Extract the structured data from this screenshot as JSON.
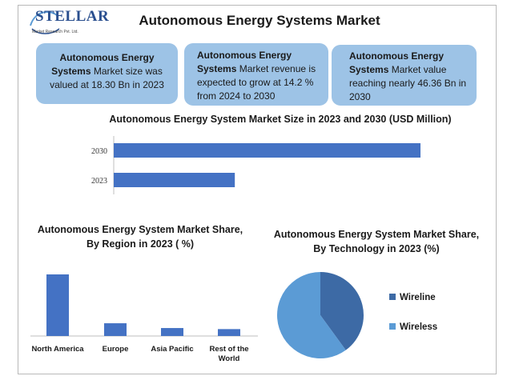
{
  "header": {
    "logo_text": "STELLAR",
    "logo_subtext": "Market Research Pvt. Ltd.",
    "title": "Autonomous Energy Systems Market"
  },
  "callouts": [
    {
      "bold": "Autonomous Energy Systems",
      "text": " Market size was valued at 18.30 Bn in 2023"
    },
    {
      "bold": "Autonomous Energy Systems",
      "text": " Market revenue is expected to grow at 14.2 % from 2024 to 2030"
    },
    {
      "bold": "Autonomous Energy Systems",
      "text": " Market value reaching nearly 46.36 Bn in 2030"
    }
  ],
  "colors": {
    "bar": "#4472c4",
    "callout": "#9dc3e6",
    "wireline": "#3d6aa5",
    "wireless": "#5b9bd5"
  },
  "chart_data": [
    {
      "type": "bar",
      "orientation": "horizontal",
      "title": "Autonomous Energy System Market Size in 2023 and 2030 (USD Million)",
      "categories": [
        "2030",
        "2023"
      ],
      "values": [
        46.36,
        18.3
      ]
    },
    {
      "type": "bar",
      "title": "Autonomous Energy System Market Share, By Region in 2023 ( %)",
      "categories": [
        "North America",
        "Europe",
        "Asia Pacific",
        "Rest of the World"
      ],
      "values": [
        58,
        12,
        7.5,
        6.5
      ]
    },
    {
      "type": "pie",
      "title": "Autonomous Energy System Market Share, By Technology in 2023 (%)",
      "labels": [
        "Wireline",
        "Wireless"
      ],
      "values": [
        40,
        60
      ],
      "legend": "right"
    }
  ]
}
